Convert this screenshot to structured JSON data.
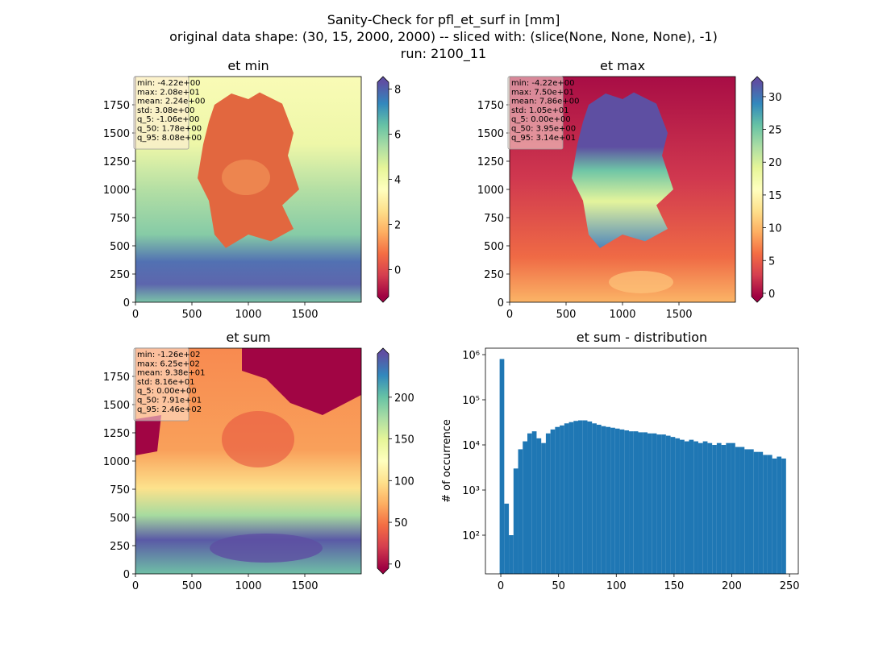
{
  "suptitle": [
    "Sanity-Check for pfl_et_surf in [mm]",
    "original data shape: (30, 15, 2000, 2000) -- sliced with: (slice(None, None, None), -1)",
    "run: 2100_11"
  ],
  "chart_data": [
    {
      "type": "image",
      "title": "et min",
      "colormap": "Spectral",
      "xlim": [
        0,
        2000
      ],
      "ylim": [
        0,
        2000
      ],
      "xticks": [
        0,
        500,
        1000,
        1500
      ],
      "yticks": [
        0,
        250,
        500,
        750,
        1000,
        1250,
        1500,
        1750
      ],
      "clim": [
        -1.2,
        8.3
      ],
      "cticks": [
        0,
        2,
        4,
        6,
        8
      ],
      "stats": [
        "min: -4.22e+00",
        "max: 2.08e+01",
        "mean: 2.24e+00",
        "std: 3.08e+00",
        "q_5: -1.06e+00",
        "q_50: 1.78e+00",
        "q_95: 8.08e+00"
      ]
    },
    {
      "type": "image",
      "title": "et max",
      "colormap": "Spectral",
      "xlim": [
        0,
        2000
      ],
      "ylim": [
        0,
        2000
      ],
      "xticks": [
        0,
        500,
        1000,
        1500
      ],
      "yticks": [
        0,
        250,
        500,
        750,
        1000,
        1250,
        1500,
        1750
      ],
      "clim": [
        -0.5,
        32.2
      ],
      "cticks": [
        0,
        5,
        10,
        15,
        20,
        25,
        30
      ],
      "stats": [
        "min: -4.22e+00",
        "max: 7.50e+01",
        "mean: 7.86e+00",
        "std: 1.05e+01",
        "q_5: 0.00e+00",
        "q_50: 3.95e+00",
        "q_95: 3.14e+01"
      ]
    },
    {
      "type": "image",
      "title": "et sum",
      "colormap": "Spectral",
      "xlim": [
        0,
        2000
      ],
      "ylim": [
        0,
        2000
      ],
      "xticks": [
        0,
        500,
        1000,
        1500
      ],
      "yticks": [
        0,
        250,
        500,
        750,
        1000,
        1250,
        1500,
        1750
      ],
      "clim": [
        -5,
        252
      ],
      "cticks": [
        0,
        50,
        100,
        150,
        200
      ],
      "stats": [
        "min: -1.26e+02",
        "max: 6.25e+02",
        "mean: 9.38e+01",
        "std: 8.16e+01",
        "q_5: 0.00e+00",
        "q_50: 7.91e+01",
        "q_95: 2.46e+02"
      ]
    },
    {
      "type": "histogram",
      "title": "et sum - distribution",
      "ylabel": "# of occurrence",
      "color": "#1f77b4",
      "log_y": true,
      "xlim": [
        -13.3,
        257.6
      ],
      "ylim": [
        13.9,
        1390000
      ],
      "xticks": [
        0,
        50,
        100,
        150,
        200,
        250
      ],
      "yticks": [
        {
          "value": 100,
          "label": "10²"
        },
        {
          "value": 1000,
          "label": "10³"
        },
        {
          "value": 10000,
          "label": "10⁴"
        },
        {
          "value": 100000,
          "label": "10⁵"
        },
        {
          "value": 1000000,
          "label": "10⁶"
        }
      ],
      "bins": [
        -1,
        3,
        7,
        11,
        15,
        19,
        23,
        27,
        31,
        35,
        39,
        43,
        47,
        51,
        55,
        59,
        63,
        67,
        71,
        75,
        79,
        83,
        87,
        91,
        95,
        99,
        103,
        107,
        111,
        115,
        119,
        123,
        127,
        131,
        135,
        139,
        143,
        147,
        151,
        155,
        159,
        163,
        167,
        171,
        175,
        179,
        183,
        187,
        191,
        195,
        199,
        203,
        207,
        211,
        215,
        219,
        223,
        227,
        231,
        235,
        239,
        243,
        247
      ],
      "counts": [
        800000,
        500,
        100,
        3000,
        8000,
        12000,
        18000,
        20000,
        14000,
        11000,
        18000,
        22000,
        25000,
        27000,
        30000,
        32000,
        34000,
        35000,
        35000,
        33000,
        30000,
        28000,
        26000,
        25000,
        24000,
        23000,
        22000,
        21000,
        20000,
        20000,
        19000,
        19000,
        18000,
        18000,
        17000,
        17000,
        16000,
        15000,
        14000,
        13000,
        12000,
        13000,
        12000,
        11000,
        12000,
        11000,
        10000,
        11000,
        10000,
        11000,
        11000,
        9000,
        9000,
        8000,
        8000,
        7000,
        7000,
        6000,
        6000,
        5000,
        5500,
        5000
      ]
    }
  ]
}
